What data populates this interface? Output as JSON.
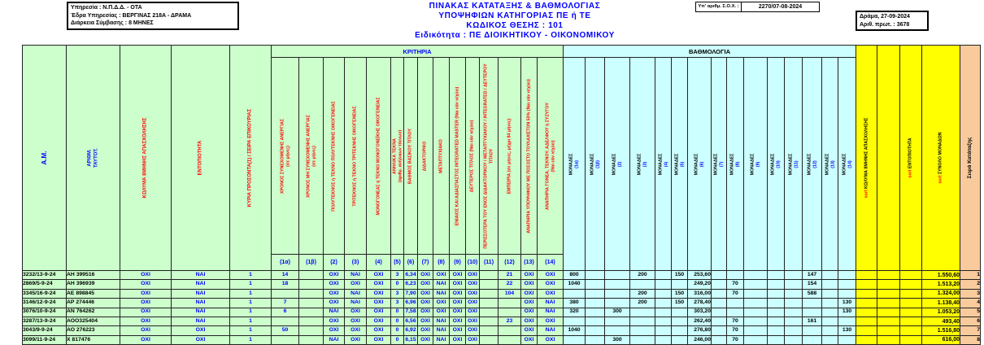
{
  "colors": {
    "green": "#ccffcc",
    "cyan": "#ccffff",
    "yellow": "#ffff00",
    "peach": "#f9cb9c",
    "blue": "#0000ff",
    "red": "#ff0000"
  },
  "header": {
    "service_lines": [
      "Υπηρεσία :  Ν.Π.Δ.Δ. - ΟΤΑ",
      "Έδρα Υπηρεσίας : ΒΕΡΓΙΝΑΣ 218Α - ΔΡΑΜΑ",
      "Διάρκεια Σύμβασης :  8 ΜΗΝΕΣ"
    ],
    "title_lines": [
      "ΠΙΝΑΚΑΣ ΚΑΤΑΤΑΞΗΣ & ΒΑΘΜΟΛΟΓΙΑΣ",
      "ΥΠΟΨΗΦΙΩΝ ΚΑΤΗΓΟΡΙΑΣ ΠΕ ή ΤΕ",
      "ΚΩΔΙΚΟΣ ΘΕΣΗΣ : 101",
      "Ειδικότητα :  ΠΕ ΔΙΟΙΚΗΤΙΚΟΥ - ΟΙΚΟΝΟΜΙΚΟΥ"
    ],
    "sox_label": "Υπ' αριθμ. Σ.Ο.Χ. :",
    "sox_value": "2270/07-08-2024",
    "protocol_lines": [
      "Δράμα, 27-09-2024",
      "Αριθ. πρωτ. : 3678"
    ]
  },
  "table": {
    "band": {
      "kritiria": "ΚΡΙΤΗΡΙΑ",
      "vathmologia": "ΒΑΘΜΟΛΟΓΙΑ"
    },
    "left_headers": [
      {
        "id": "am",
        "label": "Α.Μ.",
        "color": "blue"
      },
      {
        "id": "id-num",
        "label": "ΑΡΙΘΜ.\nΤΑΥΤΟΤ.",
        "color": "blue"
      },
      {
        "id": "kolyma",
        "label": "ΚΩΛΥΜΑ 8ΜΗΝΗΣ ΑΠΑΣΧΟΛΗΣΗΣ",
        "color": "red"
      },
      {
        "id": "entopiotita",
        "label": "ΕΝΤΟΠΙΟΤΗΤΑ",
        "color": "red"
      },
      {
        "id": "kyria-prosonta",
        "label": "ΚΥΡΙΑ ΠΡΟΣΟΝΤΑ(1) / ΣΕΙΡΑ ΕΠΙΚΟΥΡΙΑΣ",
        "color": "red"
      }
    ],
    "criteria_headers": [
      "ΧΡΟΝΟΣ ΣΥΝΕΧΟΜΕΝΗΣ ΑΝΕΡΓΙΑΣ\n(σε μήνες)",
      "ΧΡΟΝΟΣ ΜΗ ΣΥΝΕΧΟΜΕΝΗΣ ΑΝΕΡΓΙΑΣ\n(σε μήνες)",
      "ΠΟΛΥΤΕΚΝΟΣ ή ΤΕΚΝΟ ΠΟΛΥΤΕΚΝΗΣ ΟΙΚΟΓΕΝΕΙΑΣ",
      "ΤΡΙΤΕΚΝΟΣ ή ΤΕΚΝΟ ΤΡΙΤΕΚΝΗΣ ΟΙΚΟΓΕΝΕΙΑΣ",
      "ΜΟΝΟΓΟΝΕΑΣ ή ΤΕΚΝΟ ΜΟΝΟΓΟΝΕΪΚΗΣ ΟΙΚΟΓΕΝΕΙΑΣ",
      "ΑΝΗΛΙΚΑ ΤΕΚΝΑ\n(αριθμ. ανήλικων τέκνων)",
      "ΒΑΘΜΟΣ ΒΑΣΙΚΟΥ ΤΙΤΛΟΥ",
      "ΔΙΔΑΚΤΟΡΙΚΟ",
      "ΜΕΤΑΠΤΥΧΙΑΚΟ",
      "ΕΝΙΑΙΟΣ ΚΑΙ ΑΔΙΑΣΠΑΣΤΟΣ INTEGRATED MASTER (Ναι εάν ισχύει)",
      "ΔΕΥΤΕΡΟΣ ΤΙΤΛΟΣ (Ναι εάν ισχύει)",
      "ΠΕΡΙΣΣΟΤΕΡΑ ΤΟΥ ΕΝΟΣ ΔΙΔΑΚΤΟΡΙΚΟΥ / ΜΕΤΑΠΤΥΧΙΑΚΟΥ / INTEGRATED / ΔΕΥΤΕΡΟΥ\nΤΙΤΛΟΥ",
      "ΕΜΠΕΙΡΙΑ (σε μήνες, μέχρι 84 μήνες)",
      "ΑΝΑΠΗΡΙΑ ΥΠΟΨΗΦΙΟΥ ΜΕ ΠΟΣΟΣΤΟ ΤΟΥΛΑΧΙΣΤΟΝ 50% (Ναι εάν ισχύει)",
      "ΑΝΑΠΗΡΙΑ ΓΟΝΕΑ, ΤΕΚΝΟΥ, ΑΔΕΛΦΟΥ ή ΣΥΖΥΓΟΥ\n(Ναι εάν ισχύει)"
    ],
    "sub_numbers": [
      "(1α)",
      "(1β)",
      "(2)",
      "(3)",
      "(4)",
      "(5)",
      "(6)",
      "(7)",
      "(8)",
      "(9)",
      "(10)",
      "(11)",
      "(12)",
      "(13)",
      "(14)"
    ],
    "monades_label": "ΜΟΝΑΔΕΣ",
    "monades_numbers": [
      "(1α)",
      "(1β)",
      "(2)",
      "(3)",
      "(4)",
      "(5)",
      "(6)",
      "(7)",
      "(8)",
      "(9)",
      "(10)",
      "(11)",
      "(12)",
      "(13)",
      "(14)"
    ],
    "sort_headers": [
      {
        "prefix": "sort",
        "label": "ΚΩΛΥΜΑ 8ΜΗΝΗΣ ΑΠΑΣΧΟΛΗΣΗΣ"
      },
      {
        "prefix": "",
        "label": ""
      },
      {
        "prefix": "sort",
        "label": "ΕΝΤΟΠΙΟΤΗΤΑ"
      },
      {
        "prefix": "sort",
        "label": "ΣΥΝΟΛΟ ΜΟΝΑΔΩΝ"
      }
    ],
    "rank_header": "Σειρά Κατάταξης",
    "row_columns": [
      "am",
      "id_num",
      "kolyma",
      "entopiotita",
      "kyria",
      "c1a",
      "c1b",
      "c2",
      "c3",
      "c4",
      "c5",
      "c6",
      "c7",
      "c8",
      "c9",
      "c10",
      "c11",
      "c12",
      "c13",
      "c14",
      "m1a",
      "m1b",
      "m2",
      "m3",
      "m4",
      "m5",
      "m6",
      "m7",
      "m8",
      "m9",
      "m10",
      "m11",
      "m12",
      "m13",
      "m14",
      "s1",
      "s2",
      "s3",
      "total",
      "rank"
    ],
    "rows": [
      [
        "3232/13-9-24",
        "ΑΗ 399516",
        "ΟΧΙ",
        "ΝΑΙ",
        "1",
        "14",
        "",
        "ΟΧΙ",
        "ΝΑΙ",
        "ΟΧΙ",
        "3",
        "6,34",
        "ΟΧΙ",
        "ΟΧΙ",
        "ΟΧΙ",
        "ΟΧΙ",
        "",
        "21",
        "ΟΧΙ",
        "ΟΧΙ",
        "800",
        "",
        "",
        "200",
        "",
        "150",
        "253,60",
        "",
        "",
        "",
        "",
        "",
        "147",
        "",
        "",
        "",
        "",
        "",
        "1.550,60",
        "1"
      ],
      [
        "2869/5-9-24",
        "ΑΗ 396939",
        "ΟΧΙ",
        "ΝΑΙ",
        "1",
        "18",
        "",
        "ΟΧΙ",
        "ΟΧΙ",
        "ΟΧΙ",
        "0",
        "6,23",
        "ΟΧΙ",
        "ΝΑΙ",
        "ΟΧΙ",
        "ΟΧΙ",
        "",
        "22",
        "ΟΧΙ",
        "ΟΧΙ",
        "1040",
        "",
        "",
        "",
        "",
        "",
        "249,20",
        "",
        "70",
        "",
        "",
        "",
        "154",
        "",
        "",
        "",
        "",
        "",
        "1.513,20",
        "2"
      ],
      [
        "3345/16-9-24",
        "ΑΕ 898845",
        "ΟΧΙ",
        "ΝΑΙ",
        "1",
        "",
        "",
        "ΟΧΙ",
        "ΝΑΙ",
        "ΟΧΙ",
        "3",
        "7,90",
        "ΟΧΙ",
        "ΝΑΙ",
        "ΟΧΙ",
        "ΟΧΙ",
        "",
        "104",
        "ΟΧΙ",
        "ΟΧΙ",
        "",
        "",
        "",
        "200",
        "",
        "150",
        "316,00",
        "",
        "70",
        "",
        "",
        "",
        "588",
        "",
        "",
        "",
        "",
        "",
        "1.324,00",
        "3"
      ],
      [
        "3146/12-9-24",
        "ΑΡ 274446",
        "ΟΧΙ",
        "ΝΑΙ",
        "1",
        "7",
        "",
        "ΟΧΙ",
        "ΝΑΙ",
        "ΟΧΙ",
        "3",
        "6,96",
        "ΟΧΙ",
        "ΟΧΙ",
        "ΟΧΙ",
        "ΟΧΙ",
        "",
        "",
        "ΟΧΙ",
        "ΝΑΙ",
        "380",
        "",
        "",
        "200",
        "",
        "150",
        "278,40",
        "",
        "",
        "",
        "",
        "",
        "",
        "",
        "130",
        "",
        "",
        "",
        "1.138,40",
        "4"
      ],
      [
        "3076/10-9-24",
        "ΑΝ 764262",
        "ΟΧΙ",
        "ΝΑΙ",
        "1",
        "6",
        "",
        "ΝΑΙ",
        "ΟΧΙ",
        "ΟΧΙ",
        "0",
        "7,58",
        "ΟΧΙ",
        "ΟΧΙ",
        "ΟΧΙ",
        "ΟΧΙ",
        "",
        "",
        "ΟΧΙ",
        "ΝΑΙ",
        "320",
        "",
        "300",
        "",
        "",
        "",
        "303,20",
        "",
        "",
        "",
        "",
        "",
        "",
        "",
        "130",
        "",
        "",
        "",
        "1.053,20",
        "5"
      ],
      [
        "3287/13-9-24",
        "ΑΟΟ325404",
        "ΟΧΙ",
        "ΝΑΙ",
        "1",
        "",
        "",
        "ΟΧΙ",
        "ΟΧΙ",
        "ΟΧΙ",
        "0",
        "6,56",
        "ΟΧΙ",
        "ΝΑΙ",
        "ΟΧΙ",
        "ΟΧΙ",
        "",
        "23",
        "ΟΧΙ",
        "ΟΧΙ",
        "",
        "",
        "",
        "",
        "",
        "",
        "262,40",
        "",
        "70",
        "",
        "",
        "",
        "161",
        "",
        "",
        "",
        "",
        "",
        "493,40",
        "6"
      ],
      [
        "3043/9-9-24",
        "ΑΟ 276223",
        "ΟΧΙ",
        "ΟΧΙ",
        "1",
        "50",
        "",
        "ΟΧΙ",
        "ΟΧΙ",
        "ΟΧΙ",
        "0",
        "6,92",
        "ΟΧΙ",
        "ΝΑΙ",
        "ΟΧΙ",
        "ΟΧΙ",
        "",
        "",
        "ΟΧΙ",
        "ΝΑΙ",
        "1040",
        "",
        "",
        "",
        "",
        "",
        "276,80",
        "",
        "70",
        "",
        "",
        "",
        "",
        "",
        "130",
        "",
        "",
        "",
        "1.516,80",
        "7"
      ],
      [
        "3099/11-9-24",
        "Χ 817476",
        "ΟΧΙ",
        "ΟΧΙ",
        "1",
        "",
        "",
        "ΝΑΙ",
        "ΟΧΙ",
        "ΟΧΙ",
        "0",
        "6,15",
        "ΟΧΙ",
        "ΝΑΙ",
        "ΟΧΙ",
        "ΟΧΙ",
        "",
        "",
        "ΟΧΙ",
        "ΟΧΙ",
        "",
        "",
        "300",
        "",
        "",
        "",
        "246,00",
        "",
        "70",
        "",
        "",
        "",
        "",
        "",
        "",
        "",
        "",
        "",
        "616,00",
        "8"
      ]
    ]
  }
}
